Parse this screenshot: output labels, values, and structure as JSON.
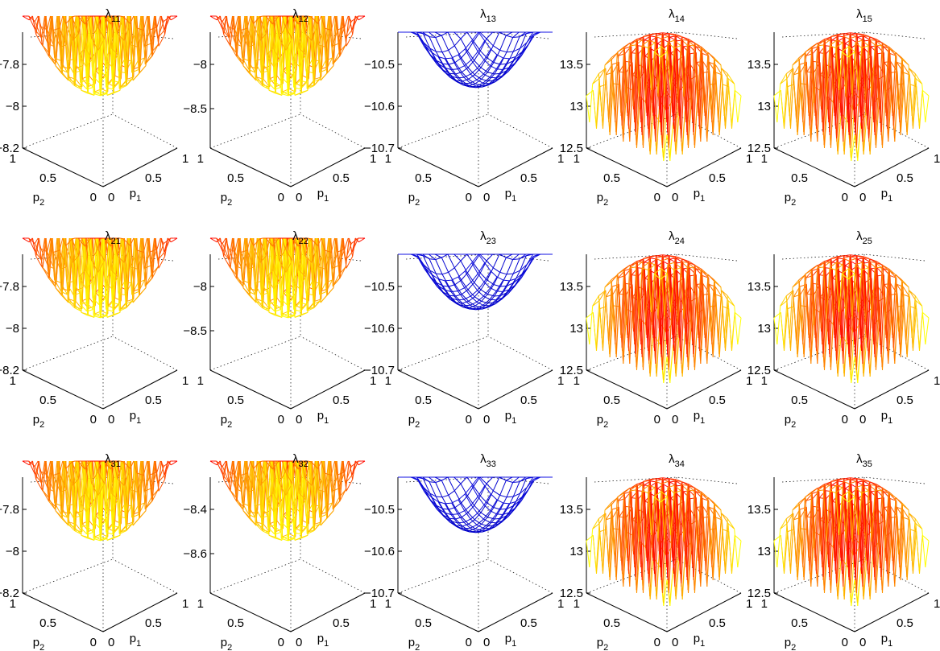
{
  "figure": {
    "x_axis_label": "p",
    "x_axis_sub": "1",
    "y_axis_label": "p",
    "y_axis_sub": "2",
    "x_ticks": [
      "0",
      "0.5",
      "1"
    ],
    "y_ticks": [
      "0",
      "0.5",
      "1"
    ],
    "title_symbol": "λ"
  },
  "chart_data": [
    {
      "type": "surface",
      "title": "λ11",
      "title_sub": "11",
      "zticks": [
        "-7.8",
        "-8",
        "-8.2"
      ],
      "style": "bowl",
      "grid": true
    },
    {
      "type": "surface",
      "title": "λ12",
      "title_sub": "12",
      "zticks": [
        "-8",
        "-8.5"
      ],
      "style": "bowl",
      "grid": true
    },
    {
      "type": "surface",
      "title": "λ13",
      "title_sub": "13",
      "zticks": [
        "-10.5",
        "-10.6",
        "-10.7"
      ],
      "style": "blue",
      "grid": true
    },
    {
      "type": "surface",
      "title": "λ14",
      "title_sub": "14",
      "zticks": [
        "13.5",
        "13",
        "12.5"
      ],
      "style": "dome",
      "grid": true
    },
    {
      "type": "surface",
      "title": "λ15",
      "title_sub": "15",
      "zticks": [
        "13.5",
        "13",
        "12.5"
      ],
      "style": "dome",
      "grid": true
    },
    {
      "type": "surface",
      "title": "λ21",
      "title_sub": "21",
      "zticks": [
        "-7.8",
        "-8",
        "-8.2"
      ],
      "style": "bowl",
      "grid": true
    },
    {
      "type": "surface",
      "title": "λ22",
      "title_sub": "22",
      "zticks": [
        "-8",
        "-8.5"
      ],
      "style": "bowl",
      "grid": true
    },
    {
      "type": "surface",
      "title": "λ23",
      "title_sub": "23",
      "zticks": [
        "-10.5",
        "-10.6",
        "-10.7"
      ],
      "style": "blue",
      "grid": true
    },
    {
      "type": "surface",
      "title": "λ24",
      "title_sub": "24",
      "zticks": [
        "13.5",
        "13",
        "12.5"
      ],
      "style": "dome",
      "grid": true
    },
    {
      "type": "surface",
      "title": "λ25",
      "title_sub": "25",
      "zticks": [
        "13.5",
        "13",
        "12.5"
      ],
      "style": "dome",
      "grid": true
    },
    {
      "type": "surface",
      "title": "λ31",
      "title_sub": "31",
      "zticks": [
        "-7.8",
        "-8",
        "-8.2"
      ],
      "style": "bowl",
      "grid": true
    },
    {
      "type": "surface",
      "title": "λ32",
      "title_sub": "32",
      "zticks": [
        "-8.4",
        "-8.6"
      ],
      "style": "bowl",
      "grid": true
    },
    {
      "type": "surface",
      "title": "λ33",
      "title_sub": "33",
      "zticks": [
        "-10.5",
        "-10.6",
        "-10.7"
      ],
      "style": "blue",
      "grid": true
    },
    {
      "type": "surface",
      "title": "λ34",
      "title_sub": "34",
      "zticks": [
        "13.5",
        "13",
        "12.5"
      ],
      "style": "dome",
      "grid": true
    },
    {
      "type": "surface",
      "title": "λ35",
      "title_sub": "35",
      "zticks": [
        "13.5",
        "13",
        "12.5"
      ],
      "style": "dome",
      "grid": true
    }
  ]
}
